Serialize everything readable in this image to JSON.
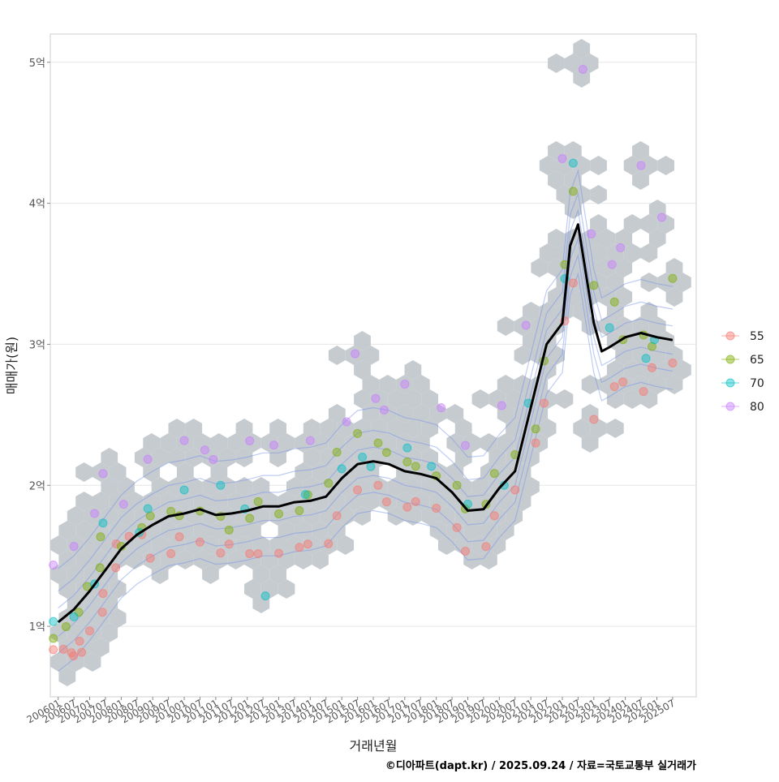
{
  "chart_data": {
    "type": "scatter",
    "xlabel": "거래년월",
    "ylabel": "매매가(원)",
    "x_ticks": [
      "200601",
      "200607",
      "200701",
      "200707",
      "200801",
      "200807",
      "200901",
      "200907",
      "201001",
      "201007",
      "201101",
      "201107",
      "201201",
      "201207",
      "201301",
      "201307",
      "201401",
      "201407",
      "201501",
      "201507",
      "201601",
      "201607",
      "201701",
      "201707",
      "201801",
      "201807",
      "201901",
      "201907",
      "202001",
      "202007",
      "202101",
      "202107",
      "202201",
      "202207",
      "202301",
      "202307",
      "202401",
      "202407",
      "202501",
      "202507"
    ],
    "y_ticks": [
      {
        "value": 1,
        "label": "1억"
      },
      {
        "value": 2,
        "label": "2억"
      },
      {
        "value": 3,
        "label": "3억"
      },
      {
        "value": 4,
        "label": "4억"
      },
      {
        "value": 5,
        "label": "5억"
      }
    ],
    "ylim": [
      0.5,
      5.2
    ],
    "xlim": [
      "200510",
      "202604"
    ],
    "grid": true,
    "legend_position": "right",
    "legend": [
      {
        "name": "55",
        "color": "#F8766D"
      },
      {
        "name": "65",
        "color": "#7CAE00"
      },
      {
        "name": "70",
        "color": "#00BFC4"
      },
      {
        "name": "80",
        "color": "#C77CFF"
      }
    ],
    "hexbin_color": "#c3c8ce",
    "density_color": "#6f8fe8",
    "trend_color": "#000000",
    "series": [
      {
        "name": "55",
        "points": [
          [
            "200601",
            0.8
          ],
          [
            "200603",
            0.82
          ],
          [
            "200605",
            0.79
          ],
          [
            "200607",
            0.83
          ],
          [
            "200609",
            0.85
          ],
          [
            "200611",
            0.86
          ],
          [
            "200701",
            0.95
          ],
          [
            "200704",
            1.1
          ],
          [
            "200707",
            1.25
          ],
          [
            "200710",
            1.45
          ],
          [
            "200801",
            1.55
          ],
          [
            "200804",
            1.62
          ],
          [
            "200807",
            1.65
          ],
          [
            "200901",
            1.5
          ],
          [
            "200907",
            1.55
          ],
          [
            "201001",
            1.6
          ],
          [
            "201007",
            1.58
          ],
          [
            "201101",
            1.52
          ],
          [
            "201107",
            1.6
          ],
          [
            "201201",
            1.55
          ],
          [
            "201207",
            1.48
          ],
          [
            "201301",
            1.5
          ],
          [
            "201307",
            1.56
          ],
          [
            "201401",
            1.6
          ],
          [
            "201407",
            1.62
          ],
          [
            "201501",
            1.75
          ],
          [
            "201507",
            1.95
          ],
          [
            "201601",
            2.0
          ],
          [
            "201607",
            1.9
          ],
          [
            "201701",
            1.88
          ],
          [
            "201707",
            1.85
          ],
          [
            "201801",
            1.82
          ],
          [
            "201807",
            1.7
          ],
          [
            "201901",
            1.55
          ],
          [
            "201907",
            1.6
          ],
          [
            "202001",
            1.75
          ],
          [
            "202007",
            1.95
          ],
          [
            "202101",
            2.3
          ],
          [
            "202107",
            2.6
          ],
          [
            "202201",
            3.2
          ],
          [
            "202207",
            3.4
          ],
          [
            "202301",
            2.45
          ],
          [
            "202307",
            2.7
          ],
          [
            "202401",
            2.75
          ],
          [
            "202407",
            2.7
          ],
          [
            "202501",
            2.8
          ],
          [
            "202507",
            2.85
          ]
        ]
      },
      {
        "name": "65",
        "points": [
          [
            "200601",
            0.88
          ],
          [
            "200604",
            0.98
          ],
          [
            "200607",
            1.1
          ],
          [
            "200701",
            1.3
          ],
          [
            "200704",
            1.45
          ],
          [
            "200707",
            1.6
          ],
          [
            "200801",
            1.55
          ],
          [
            "200807",
            1.7
          ],
          [
            "200901",
            1.8
          ],
          [
            "200907",
            1.85
          ],
          [
            "201001",
            1.75
          ],
          [
            "201007",
            1.8
          ],
          [
            "201101",
            1.78
          ],
          [
            "201107",
            1.7
          ],
          [
            "201201",
            1.8
          ],
          [
            "201207",
            1.85
          ],
          [
            "201301",
            1.78
          ],
          [
            "201307",
            1.82
          ],
          [
            "201401",
            1.95
          ],
          [
            "201407",
            2.05
          ],
          [
            "201501",
            2.2
          ],
          [
            "201507",
            2.35
          ],
          [
            "201601",
            2.3
          ],
          [
            "201607",
            2.25
          ],
          [
            "201701",
            2.2
          ],
          [
            "201707",
            2.1
          ],
          [
            "201801",
            2.05
          ],
          [
            "201807",
            2.0
          ],
          [
            "201901",
            1.85
          ],
          [
            "201907",
            1.9
          ],
          [
            "202001",
            2.05
          ],
          [
            "202007",
            2.2
          ],
          [
            "202101",
            2.4
          ],
          [
            "202107",
            2.9
          ],
          [
            "202201",
            3.6
          ],
          [
            "202207",
            4.05
          ],
          [
            "202301",
            3.4
          ],
          [
            "202307",
            3.3
          ],
          [
            "202401",
            3.05
          ],
          [
            "202407",
            3.1
          ],
          [
            "202501",
            2.95
          ],
          [
            "202507",
            3.45
          ]
        ]
      },
      {
        "name": "70",
        "points": [
          [
            "200601",
            1.0
          ],
          [
            "200607",
            1.05
          ],
          [
            "200701",
            1.3
          ],
          [
            "200707",
            1.75
          ],
          [
            "200807",
            1.7
          ],
          [
            "200901",
            1.8
          ],
          [
            "201001",
            1.95
          ],
          [
            "201101",
            2.0
          ],
          [
            "201201",
            1.85
          ],
          [
            "201207",
            1.25
          ],
          [
            "201401",
            1.9
          ],
          [
            "201501",
            2.1
          ],
          [
            "201507",
            2.2
          ],
          [
            "201601",
            2.15
          ],
          [
            "201701",
            2.3
          ],
          [
            "201801",
            2.1
          ],
          [
            "201901",
            1.85
          ],
          [
            "202001",
            2.0
          ],
          [
            "202101",
            2.6
          ],
          [
            "202201",
            3.5
          ],
          [
            "202207",
            4.25
          ],
          [
            "202307",
            3.1
          ],
          [
            "202407",
            2.9
          ],
          [
            "202501",
            3.05
          ]
        ]
      },
      {
        "name": "80",
        "points": [
          [
            "200601",
            1.4
          ],
          [
            "200607",
            1.55
          ],
          [
            "200701",
            1.8
          ],
          [
            "200707",
            2.1
          ],
          [
            "200801",
            1.9
          ],
          [
            "200901",
            2.15
          ],
          [
            "201001",
            2.3
          ],
          [
            "201007",
            2.25
          ],
          [
            "201101",
            2.2
          ],
          [
            "201201",
            2.35
          ],
          [
            "201301",
            2.25
          ],
          [
            "201401",
            2.3
          ],
          [
            "201501",
            2.45
          ],
          [
            "201507",
            2.95
          ],
          [
            "201601",
            2.65
          ],
          [
            "201607",
            2.5
          ],
          [
            "201701",
            2.7
          ],
          [
            "201801",
            2.55
          ],
          [
            "201901",
            2.3
          ],
          [
            "202001",
            2.6
          ],
          [
            "202101",
            3.1
          ],
          [
            "202201",
            4.3
          ],
          [
            "202207",
            4.95
          ],
          [
            "202301",
            3.8
          ],
          [
            "202307",
            3.6
          ],
          [
            "202401",
            3.65
          ],
          [
            "202407",
            4.25
          ],
          [
            "202501",
            3.9
          ]
        ]
      }
    ],
    "trend": [
      [
        "200601",
        1.03
      ],
      [
        "200607",
        1.12
      ],
      [
        "200701",
        1.25
      ],
      [
        "200707",
        1.4
      ],
      [
        "200801",
        1.55
      ],
      [
        "200807",
        1.65
      ],
      [
        "200901",
        1.72
      ],
      [
        "200907",
        1.78
      ],
      [
        "201001",
        1.8
      ],
      [
        "201007",
        1.83
      ],
      [
        "201101",
        1.79
      ],
      [
        "201107",
        1.8
      ],
      [
        "201201",
        1.82
      ],
      [
        "201207",
        1.85
      ],
      [
        "201301",
        1.85
      ],
      [
        "201307",
        1.88
      ],
      [
        "201401",
        1.89
      ],
      [
        "201407",
        1.92
      ],
      [
        "201501",
        2.05
      ],
      [
        "201507",
        2.15
      ],
      [
        "201601",
        2.17
      ],
      [
        "201607",
        2.15
      ],
      [
        "201701",
        2.1
      ],
      [
        "201707",
        2.08
      ],
      [
        "201801",
        2.05
      ],
      [
        "201807",
        1.95
      ],
      [
        "201901",
        1.82
      ],
      [
        "201907",
        1.83
      ],
      [
        "202001",
        1.98
      ],
      [
        "202007",
        2.1
      ],
      [
        "202101",
        2.55
      ],
      [
        "202107",
        3.0
      ],
      [
        "202201",
        3.15
      ],
      [
        "202204",
        3.7
      ],
      [
        "202207",
        3.85
      ],
      [
        "202301",
        3.15
      ],
      [
        "202304",
        2.95
      ],
      [
        "202307",
        2.98
      ],
      [
        "202401",
        3.05
      ],
      [
        "202407",
        3.08
      ],
      [
        "202501",
        3.05
      ],
      [
        "202507",
        3.03
      ]
    ]
  },
  "caption": "©디아파트(dapt.kr) / 2025.09.24 / 자료=국토교통부 실거래가"
}
